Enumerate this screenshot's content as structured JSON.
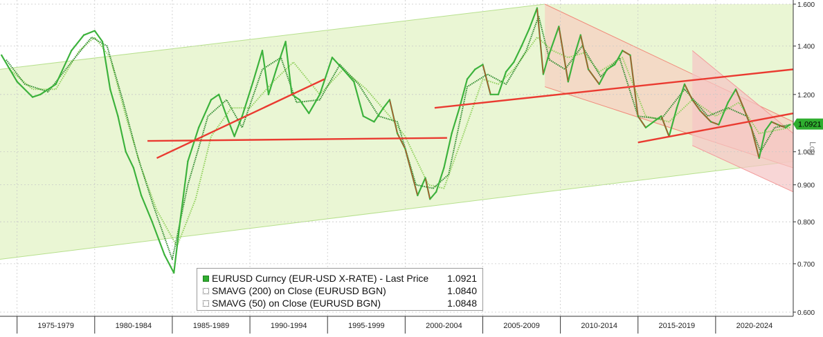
{
  "chart_data": {
    "type": "line",
    "yscale": "log",
    "ylabel": "Log",
    "ylim": [
      0.6,
      1.6
    ],
    "y_ticks": [
      "0.600",
      "0.700",
      "0.800",
      "0.900",
      "1.000",
      "1.200",
      "1.400",
      "1.600"
    ],
    "x_range": [
      1973.9,
      2025.0
    ],
    "x_periods": [
      "1975-1979",
      "1980-1984",
      "1985-1989",
      "1990-1994",
      "1995-1999",
      "2000-2004",
      "2005-2009",
      "2010-2014",
      "2015-2019",
      "2020-2024"
    ],
    "last_price_label": "1.0921",
    "series": [
      {
        "name": "EURUSD Curncy (EUR-USD X-RATE) - Last Price",
        "legend_value": "1.0921",
        "x": [
          1974.0,
          1975.0,
          1976.0,
          1976.5,
          1977.5,
          1978.5,
          1979.3,
          1980.0,
          1980.5,
          1981.0,
          1981.5,
          1982.0,
          1982.5,
          1983.0,
          1983.7,
          1984.5,
          1985.1,
          1985.5,
          1986.0,
          1986.7,
          1987.5,
          1988.0,
          1988.5,
          1989.0,
          1989.5,
          1990.2,
          1990.8,
          1991.2,
          1991.7,
          1992.3,
          1992.7,
          1993.2,
          1993.8,
          1994.5,
          1995.3,
          1996.0,
          1996.7,
          1997.3,
          1998.0,
          1998.6,
          1999.0,
          1999.5,
          2000.0,
          2000.8,
          2001.3,
          2001.6,
          2002.0,
          2002.5,
          2003.0,
          2003.5,
          2004.0,
          2004.5,
          2005.0,
          2005.5,
          2006.0,
          2006.5,
          2007.0,
          2007.5,
          2008.0,
          2008.5,
          2008.9,
          2009.2,
          2009.9,
          2010.5,
          2011.0,
          2011.3,
          2011.8,
          2012.5,
          2013.0,
          2013.5,
          2014.0,
          2014.5,
          2015.0,
          2015.5,
          2016.0,
          2016.5,
          2017.0,
          2017.5,
          2018.0,
          2018.5,
          2019.0,
          2019.7,
          2020.2,
          2020.8,
          2021.3,
          2021.8,
          2022.3,
          2022.8,
          2023.2,
          2023.6,
          2024.0,
          2024.5,
          2024.8
        ],
        "y": [
          1.36,
          1.25,
          1.19,
          1.2,
          1.24,
          1.38,
          1.45,
          1.47,
          1.42,
          1.22,
          1.12,
          1.0,
          0.95,
          0.87,
          0.8,
          0.72,
          0.68,
          0.8,
          0.97,
          1.08,
          1.18,
          1.2,
          1.12,
          1.05,
          1.12,
          1.25,
          1.38,
          1.2,
          1.3,
          1.42,
          1.2,
          1.18,
          1.13,
          1.2,
          1.35,
          1.3,
          1.25,
          1.12,
          1.1,
          1.15,
          1.18,
          1.06,
          1.01,
          0.87,
          0.92,
          0.86,
          0.88,
          0.95,
          1.06,
          1.15,
          1.26,
          1.3,
          1.32,
          1.2,
          1.2,
          1.29,
          1.33,
          1.4,
          1.48,
          1.58,
          1.28,
          1.35,
          1.49,
          1.25,
          1.38,
          1.45,
          1.3,
          1.24,
          1.3,
          1.32,
          1.38,
          1.36,
          1.12,
          1.08,
          1.1,
          1.12,
          1.05,
          1.15,
          1.24,
          1.18,
          1.14,
          1.1,
          1.09,
          1.17,
          1.22,
          1.15,
          1.08,
          0.98,
          1.07,
          1.1,
          1.09,
          1.08,
          1.09
        ]
      },
      {
        "name": "SMAVG (200)  on Close (EURUSD BGN)",
        "legend_value": "1.0840",
        "x": [
          1974.5,
          1976.0,
          1977.5,
          1979.0,
          1980.0,
          1981.0,
          1982.0,
          1983.0,
          1984.0,
          1985.3,
          1986.5,
          1987.5,
          1988.8,
          1990.0,
          1991.5,
          1992.8,
          1994.5,
          1996.0,
          1997.5,
          1999.0,
          2000.0,
          2001.5,
          2002.5,
          2003.5,
          2005.0,
          2006.0,
          2007.0,
          2008.5,
          2009.5,
          2010.5,
          2011.5,
          2012.5,
          2014.0,
          2015.5,
          2017.0,
          2018.5,
          2020.0,
          2021.5,
          2022.8,
          2023.8,
          2024.8
        ],
        "y": [
          1.3,
          1.22,
          1.22,
          1.38,
          1.44,
          1.35,
          1.12,
          0.95,
          0.83,
          0.74,
          0.86,
          1.05,
          1.15,
          1.15,
          1.25,
          1.33,
          1.2,
          1.3,
          1.22,
          1.12,
          1.05,
          0.9,
          0.89,
          1.02,
          1.26,
          1.24,
          1.3,
          1.44,
          1.38,
          1.35,
          1.37,
          1.29,
          1.35,
          1.12,
          1.1,
          1.18,
          1.12,
          1.17,
          1.06,
          1.07,
          1.08
        ]
      },
      {
        "name": "SMAVG (50)  on Close (EURUSD BGN)",
        "legend_value": "1.0848",
        "x": [
          1974.3,
          1975.5,
          1977.0,
          1978.5,
          1979.8,
          1980.8,
          1981.8,
          1982.8,
          1983.8,
          1985.0,
          1986.0,
          1987.3,
          1988.5,
          1989.5,
          1990.8,
          1992.0,
          1993.0,
          1994.5,
          1995.8,
          1997.0,
          1998.3,
          1999.5,
          2000.7,
          2001.8,
          2002.8,
          2004.0,
          2005.3,
          2006.5,
          2007.8,
          2008.6,
          2009.3,
          2010.3,
          2011.4,
          2012.6,
          2013.8,
          2015.0,
          2016.5,
          2018.0,
          2019.5,
          2020.8,
          2022.0,
          2022.9,
          2023.8,
          2024.8
        ],
        "y": [
          1.34,
          1.24,
          1.21,
          1.33,
          1.44,
          1.4,
          1.18,
          0.98,
          0.84,
          0.71,
          0.9,
          1.12,
          1.18,
          1.08,
          1.3,
          1.35,
          1.17,
          1.18,
          1.32,
          1.24,
          1.12,
          1.1,
          0.9,
          0.89,
          0.93,
          1.23,
          1.28,
          1.24,
          1.38,
          1.54,
          1.34,
          1.3,
          1.4,
          1.27,
          1.35,
          1.12,
          1.11,
          1.22,
          1.12,
          1.15,
          1.12,
          1.0,
          1.08,
          1.09
        ]
      }
    ],
    "regions": [
      {
        "shape": "channel",
        "color": "#eaf6d4",
        "stroke": "#b7e08d",
        "upper": {
          "x": [
            1973.9,
            2009.0
          ],
          "y": [
            1.3,
            1.6
          ]
        },
        "lower": {
          "x": [
            1973.9,
            2025.0
          ],
          "y": [
            0.71,
            0.97
          ]
        }
      },
      {
        "shape": "channel",
        "color": "#f6cfc0",
        "stroke": "#f08a7a",
        "upper": {
          "x": [
            2009.0,
            2025.0
          ],
          "y": [
            1.6,
            1.1
          ]
        },
        "lower": {
          "x": [
            2009.0,
            2025.0
          ],
          "y": [
            1.23,
            0.95
          ]
        }
      },
      {
        "shape": "channel",
        "color": "#f5c4c4",
        "stroke": "#f39a9a",
        "upper": {
          "x": [
            2018.5,
            2025.0
          ],
          "y": [
            1.38,
            1.06
          ]
        },
        "lower": {
          "x": [
            2018.5,
            2025.0
          ],
          "y": [
            1.02,
            0.88
          ]
        }
      }
    ],
    "trendlines": [
      {
        "x": [
          1983.4,
          2002.7
        ],
        "y": [
          1.035,
          1.045
        ]
      },
      {
        "x": [
          1984.0,
          1994.8
        ],
        "y": [
          0.98,
          1.26
        ]
      },
      {
        "x": [
          2001.9,
          2025.0
        ],
        "y": [
          1.15,
          1.3
        ]
      },
      {
        "x": [
          2015.0,
          2025.0
        ],
        "y": [
          1.03,
          1.13
        ]
      }
    ],
    "colors": {
      "price": "#3cb23c",
      "price_down": "#e0302a",
      "sma200": "#8fd05a",
      "sma50": "#2b8a2b",
      "trend": "#ea3a30",
      "last_price_box": "#2fae2f"
    }
  }
}
